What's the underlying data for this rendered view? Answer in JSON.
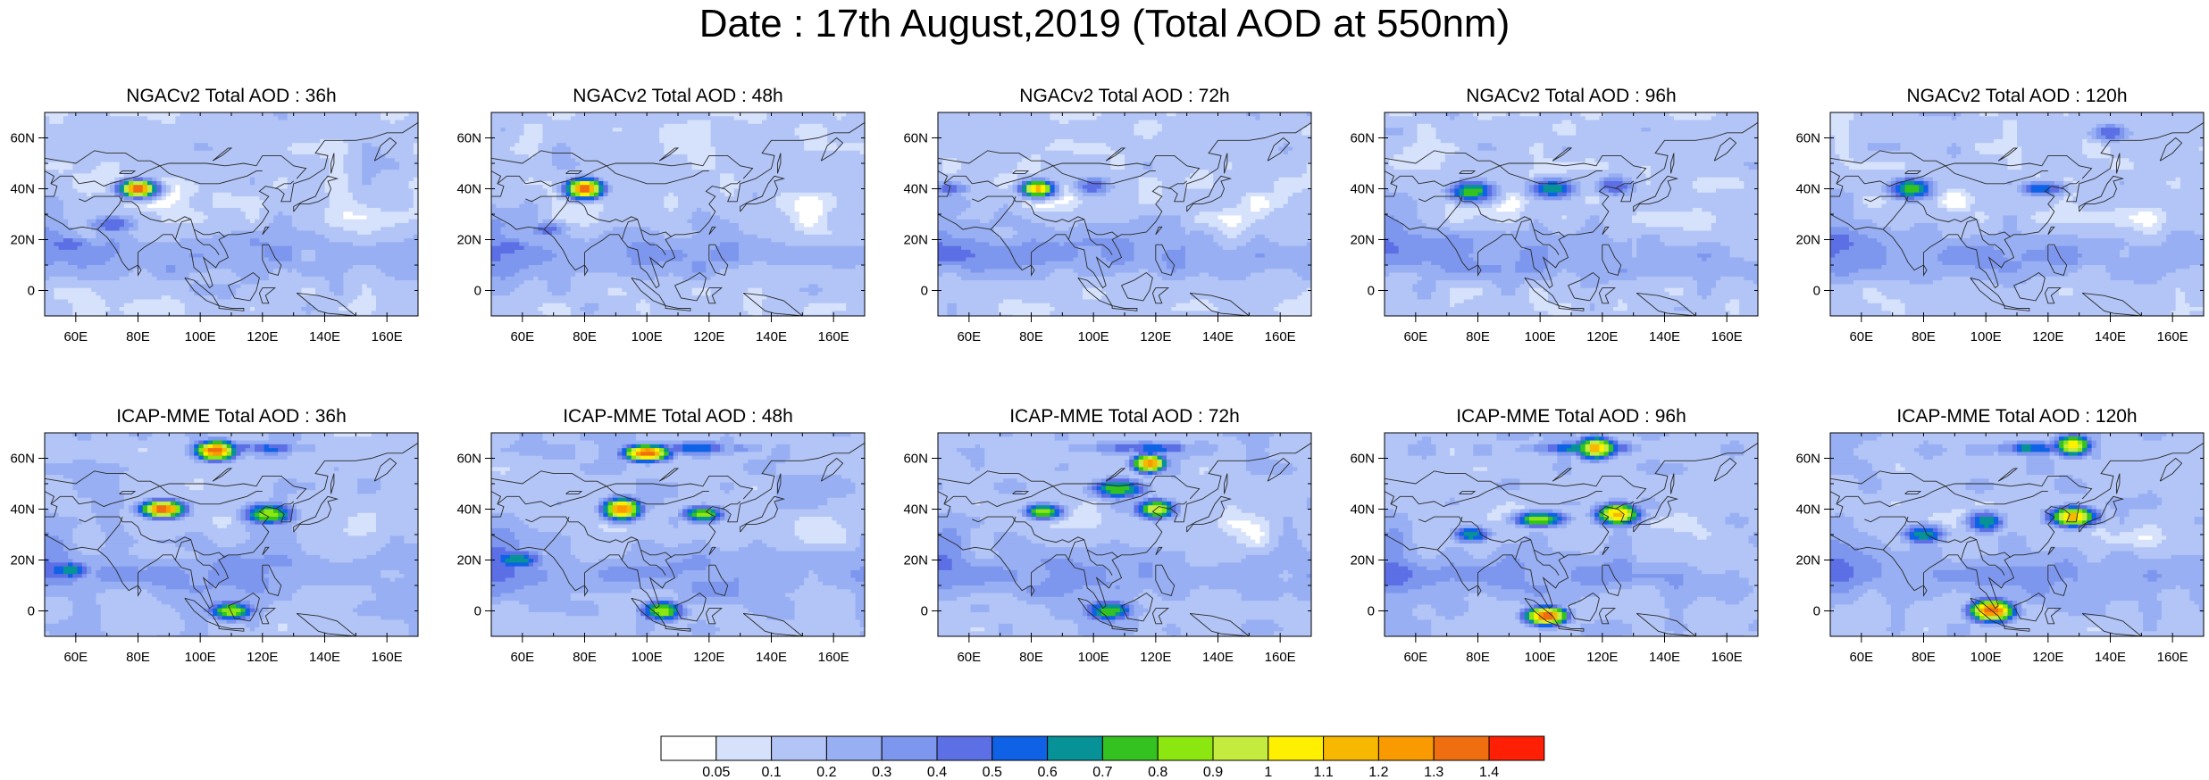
{
  "title": "Date : 17th August,2019 (Total AOD at 550nm)",
  "chart_data": {
    "type": "heatmap",
    "variable": "Total AOD at 550nm",
    "lon_range": [
      50,
      170
    ],
    "lat_range": [
      -10,
      70
    ],
    "xtick_labels": [
      "60E",
      "80E",
      "100E",
      "120E",
      "140E",
      "160E"
    ],
    "xtick_values": [
      60,
      80,
      100,
      120,
      140,
      160
    ],
    "ytick_labels": [
      "0",
      "20N",
      "40N",
      "60N"
    ],
    "ytick_values": [
      0,
      20,
      40,
      60
    ],
    "panels": [
      {
        "model": "NGACv2",
        "lead": "36h",
        "title": "NGACv2 Total AOD : 36h",
        "hotspots": [
          {
            "lon": 80,
            "lat": 40,
            "aod": 1.4
          },
          {
            "lon": 72,
            "lat": 26,
            "aod": 0.5
          },
          {
            "lon": 58,
            "lat": 18,
            "aod": 0.5
          }
        ]
      },
      {
        "model": "NGACv2",
        "lead": "48h",
        "title": "NGACv2 Total AOD : 48h",
        "hotspots": [
          {
            "lon": 80,
            "lat": 40,
            "aod": 1.4
          },
          {
            "lon": 68,
            "lat": 24,
            "aod": 0.5
          },
          {
            "lon": 56,
            "lat": 17,
            "aod": 0.5
          }
        ]
      },
      {
        "model": "NGACv2",
        "lead": "72h",
        "title": "NGACv2 Total AOD : 72h",
        "hotspots": [
          {
            "lon": 82,
            "lat": 40,
            "aod": 1.2
          },
          {
            "lon": 100,
            "lat": 41,
            "aod": 0.5
          },
          {
            "lon": 54,
            "lat": 40,
            "aod": 0.5
          }
        ]
      },
      {
        "model": "NGACv2",
        "lead": "96h",
        "title": "NGACv2 Total AOD : 96h",
        "hotspots": [
          {
            "lon": 78,
            "lat": 39,
            "aod": 0.8
          },
          {
            "lon": 104,
            "lat": 40,
            "aod": 0.7
          },
          {
            "lon": 124,
            "lat": 41,
            "aod": 0.5
          }
        ]
      },
      {
        "model": "NGACv2",
        "lead": "120h",
        "title": "NGACv2 Total AOD : 120h",
        "hotspots": [
          {
            "lon": 76,
            "lat": 40,
            "aod": 0.8
          },
          {
            "lon": 118,
            "lat": 40,
            "aod": 0.6
          },
          {
            "lon": 140,
            "lat": 62,
            "aod": 0.5
          }
        ]
      },
      {
        "model": "ICAP-MME",
        "lead": "36h",
        "title": "ICAP-MME Total AOD : 36h",
        "hotspots": [
          {
            "lon": 105,
            "lat": 63,
            "aod": 1.4
          },
          {
            "lon": 88,
            "lat": 40,
            "aod": 1.4
          },
          {
            "lon": 122,
            "lat": 38,
            "aod": 0.9
          },
          {
            "lon": 58,
            "lat": 16,
            "aod": 0.7
          },
          {
            "lon": 110,
            "lat": 0,
            "aod": 0.9
          }
        ]
      },
      {
        "model": "ICAP-MME",
        "lead": "48h",
        "title": "ICAP-MME Total AOD : 48h",
        "hotspots": [
          {
            "lon": 100,
            "lat": 62,
            "aod": 1.4
          },
          {
            "lon": 92,
            "lat": 40,
            "aod": 1.3
          },
          {
            "lon": 118,
            "lat": 38,
            "aod": 0.9
          },
          {
            "lon": 58,
            "lat": 20,
            "aod": 0.7
          },
          {
            "lon": 105,
            "lat": 0,
            "aod": 0.9
          }
        ]
      },
      {
        "model": "ICAP-MME",
        "lead": "72h",
        "title": "ICAP-MME Total AOD : 72h",
        "hotspots": [
          {
            "lon": 118,
            "lat": 58,
            "aod": 1.3
          },
          {
            "lon": 120,
            "lat": 40,
            "aod": 1.0
          },
          {
            "lon": 84,
            "lat": 39,
            "aod": 0.9
          },
          {
            "lon": 108,
            "lat": 48,
            "aod": 0.8
          },
          {
            "lon": 105,
            "lat": 0,
            "aod": 0.8
          }
        ]
      },
      {
        "model": "ICAP-MME",
        "lead": "96h",
        "title": "ICAP-MME Total AOD : 96h",
        "hotspots": [
          {
            "lon": 118,
            "lat": 64,
            "aod": 1.2
          },
          {
            "lon": 125,
            "lat": 38,
            "aod": 1.2
          },
          {
            "lon": 100,
            "lat": 36,
            "aod": 0.9
          },
          {
            "lon": 78,
            "lat": 30,
            "aod": 0.7
          },
          {
            "lon": 102,
            "lat": -2,
            "aod": 1.4
          }
        ]
      },
      {
        "model": "ICAP-MME",
        "lead": "120h",
        "title": "ICAP-MME Total AOD : 120h",
        "hotspots": [
          {
            "lon": 128,
            "lat": 37,
            "aod": 1.2
          },
          {
            "lon": 128,
            "lat": 65,
            "aod": 1.1
          },
          {
            "lon": 80,
            "lat": 30,
            "aod": 0.7
          },
          {
            "lon": 100,
            "lat": 35,
            "aod": 0.7
          },
          {
            "lon": 102,
            "lat": 0,
            "aod": 1.4
          }
        ]
      }
    ],
    "colorbar": {
      "labels": [
        "0.05",
        "0.1",
        "0.2",
        "0.3",
        "0.4",
        "0.5",
        "0.6",
        "0.7",
        "0.8",
        "0.9",
        "1",
        "1.1",
        "1.2",
        "1.3",
        "1.4"
      ],
      "levels": [
        0.05,
        0.1,
        0.2,
        0.3,
        0.4,
        0.5,
        0.6,
        0.7,
        0.8,
        0.9,
        1.0,
        1.1,
        1.2,
        1.3,
        1.4
      ],
      "colors": [
        "#ffffff",
        "#d6e1fb",
        "#b3c5f6",
        "#98aff3",
        "#7e97ee",
        "#5d6fe5",
        "#0f62e6",
        "#069297",
        "#33c21f",
        "#8ce60f",
        "#c3ec3e",
        "#fff000",
        "#f8b800",
        "#f99a00",
        "#ef6e10",
        "#ff1f05"
      ]
    }
  }
}
